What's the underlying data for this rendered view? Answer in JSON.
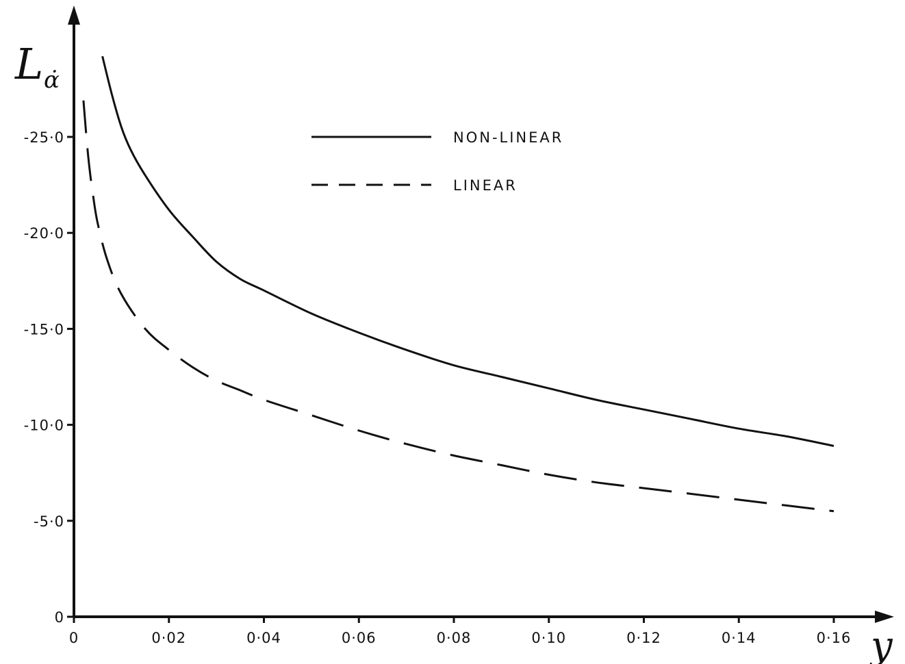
{
  "chart_data": {
    "type": "line",
    "title": "",
    "xlabel": "y",
    "ylabel": "L",
    "ylabel_subscript": "α̇",
    "xlim": [
      0,
      0.16
    ],
    "ylim": [
      0,
      -25
    ],
    "y_display": "negative values plotted upward; tick labels shown with a leading dash",
    "grid": false,
    "legend_position": "top-center",
    "x_tick_labels": [
      "0",
      "0·02",
      "0·04",
      "0·06",
      "0·08",
      "0·10",
      "0·12",
      "0·14",
      "0·16"
    ],
    "x_ticks": [
      0,
      0.02,
      0.04,
      0.06,
      0.08,
      0.1,
      0.12,
      0.14,
      0.16
    ],
    "y_tick_labels": [
      "0",
      "-5·0",
      "-10·0",
      "-15·0",
      "-20·0",
      "-25·0"
    ],
    "y_ticks": [
      0,
      -5,
      -10,
      -15,
      -20,
      -25
    ],
    "series": [
      {
        "name": "NON-LINEAR",
        "style": "solid",
        "x": [
          0.006,
          0.008,
          0.01,
          0.012,
          0.015,
          0.02,
          0.025,
          0.03,
          0.035,
          0.04,
          0.05,
          0.06,
          0.07,
          0.08,
          0.09,
          0.1,
          0.11,
          0.12,
          0.13,
          0.14,
          0.15,
          0.16
        ],
        "y": [
          -29.2,
          -27.2,
          -25.5,
          -24.3,
          -23.0,
          -21.2,
          -19.8,
          -18.5,
          -17.6,
          -17.0,
          -15.8,
          -14.8,
          -13.9,
          -13.1,
          -12.5,
          -11.9,
          -11.3,
          -10.8,
          -10.3,
          -9.8,
          -9.4,
          -8.9
        ]
      },
      {
        "name": "LINEAR",
        "style": "dashed",
        "x": [
          0.002,
          0.003,
          0.004,
          0.005,
          0.007,
          0.01,
          0.015,
          0.02,
          0.025,
          0.03,
          0.035,
          0.04,
          0.05,
          0.06,
          0.07,
          0.08,
          0.09,
          0.1,
          0.11,
          0.12,
          0.13,
          0.14,
          0.15,
          0.16
        ],
        "y": [
          -26.9,
          -24.0,
          -22.0,
          -20.5,
          -18.6,
          -16.8,
          -15.0,
          -13.9,
          -13.0,
          -12.3,
          -11.8,
          -11.3,
          -10.5,
          -9.7,
          -9.0,
          -8.4,
          -7.9,
          -7.4,
          -7.0,
          -6.7,
          -6.4,
          -6.1,
          -5.8,
          -5.5
        ]
      }
    ]
  }
}
